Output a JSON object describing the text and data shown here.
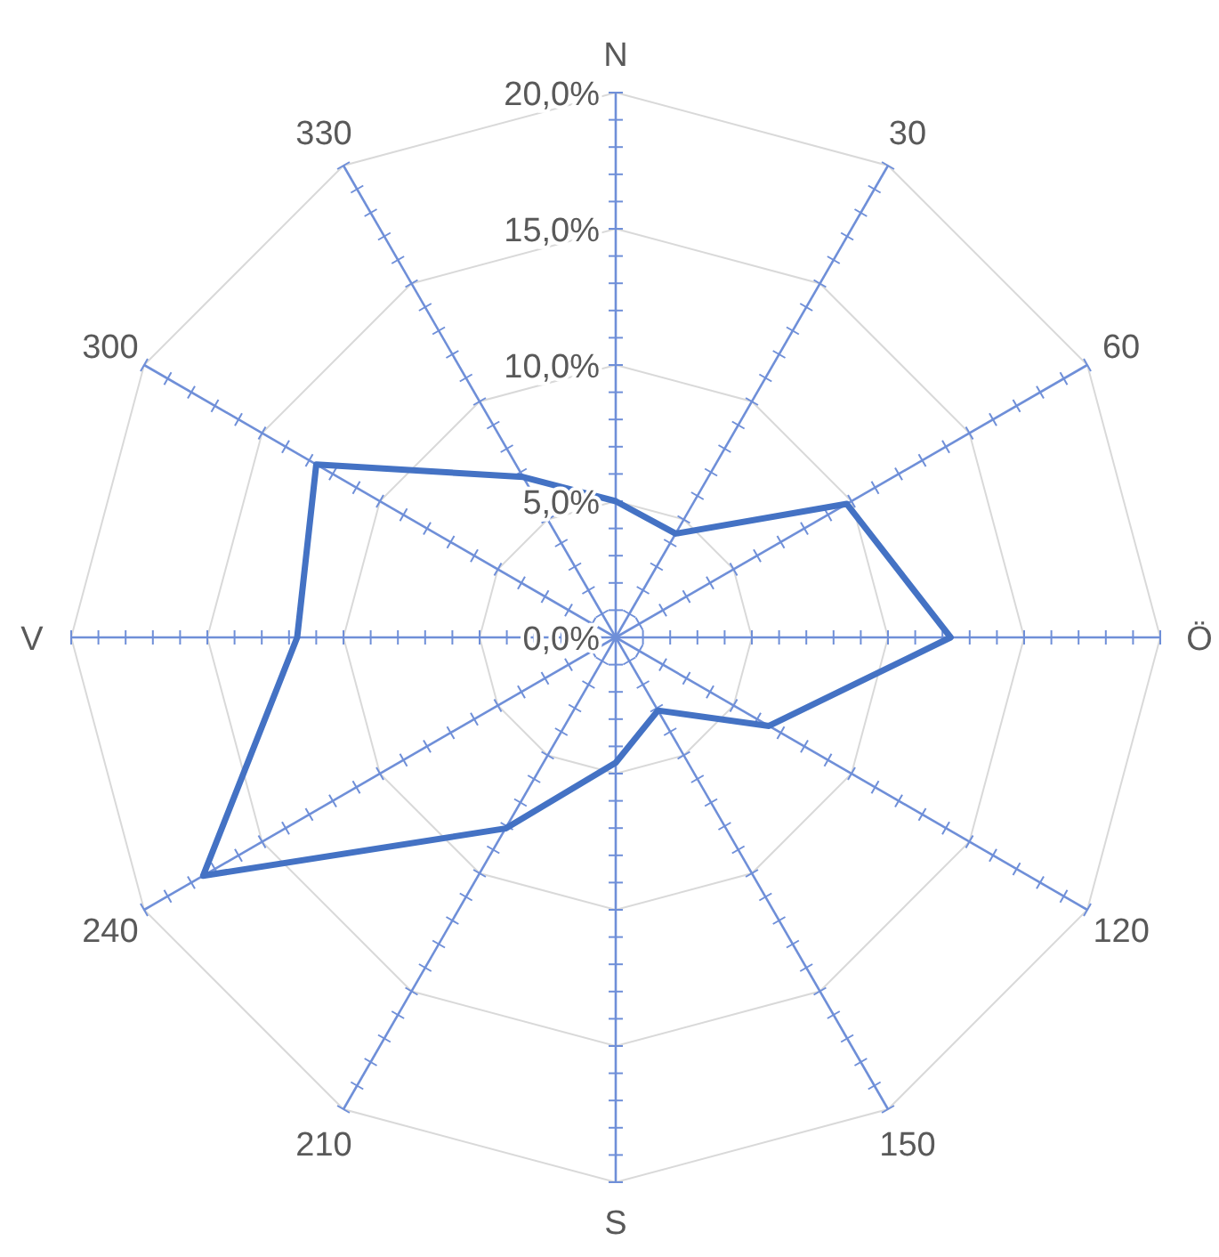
{
  "chart_data": {
    "type": "radar",
    "categories": [
      "N",
      "30",
      "60",
      "Ö",
      "120",
      "150",
      "S",
      "210",
      "240",
      "V",
      "300",
      "330"
    ],
    "series": [
      {
        "color": "#4472c4",
        "values": [
          5.0,
          4.4,
          9.8,
          12.3,
          6.5,
          3.1,
          4.6,
          8.1,
          17.5,
          11.7,
          12.7,
          6.8
        ]
      }
    ],
    "ylim": [
      0,
      20
    ],
    "yticks": [
      {
        "value": 0,
        "label": "0,0%"
      },
      {
        "value": 5,
        "label": "5,0%"
      },
      {
        "value": 10,
        "label": "10,0%"
      },
      {
        "value": 15,
        "label": "15,0%"
      },
      {
        "value": 20,
        "label": "20,0%"
      }
    ],
    "grid": true,
    "marker": "none",
    "line_style": "solid"
  }
}
